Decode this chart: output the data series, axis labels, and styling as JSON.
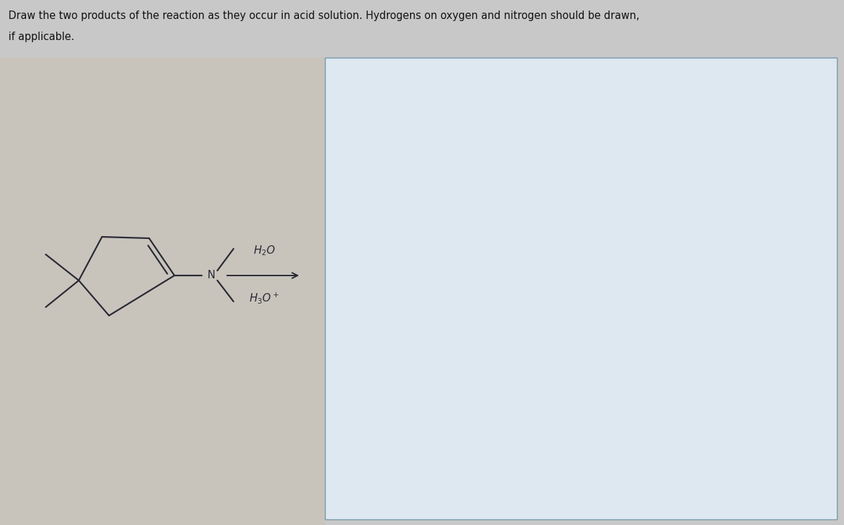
{
  "background_color": "#c8c8c8",
  "left_panel_color": "#c8c4bc",
  "right_box_color": "#dde8f0",
  "right_box_edge_color": "#7799aa",
  "line_color": "#2a2a35",
  "arrow_color": "#2a2a35",
  "reagent_color": "#2a2a35",
  "fig_width": 12.0,
  "fig_height": 7.47,
  "title_line1": "Draw the two products of the reaction as they occur in acid solution. Hydrogens on oxygen and nitrogen should be drawn,",
  "title_line2": "if applicable."
}
